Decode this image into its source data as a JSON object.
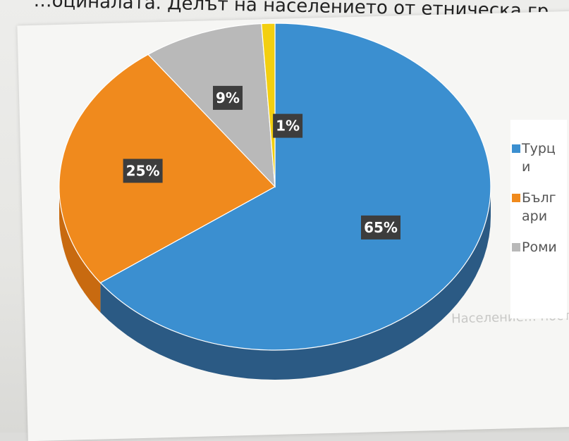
{
  "heading": "…оциналата. Делът на населението от етническа гр…",
  "chart_data": {
    "type": "pie",
    "style": "3d",
    "title": "",
    "legend_position": "right",
    "categories": [
      "Турци",
      "Българи",
      "Роми",
      ""
    ],
    "values": [
      65,
      25,
      9,
      1
    ],
    "labels": [
      "65%",
      "25%",
      "9%",
      "1%"
    ],
    "colors": [
      "#3b8fd0",
      "#f08a1d",
      "#b9b9b9",
      "#f3cf10"
    ],
    "side_colors": [
      "#2b5a84",
      "#c86a10",
      "#8f8f8f",
      "#c9aa08"
    ]
  },
  "legend": [
    {
      "label": "Турци",
      "color": "#3b8fd0"
    },
    {
      "label": "Българи",
      "color": "#f08a1d"
    },
    {
      "label": "Роми",
      "color": "#b9b9b9"
    }
  ],
  "background_text": "Население… постоянен настоящ…"
}
